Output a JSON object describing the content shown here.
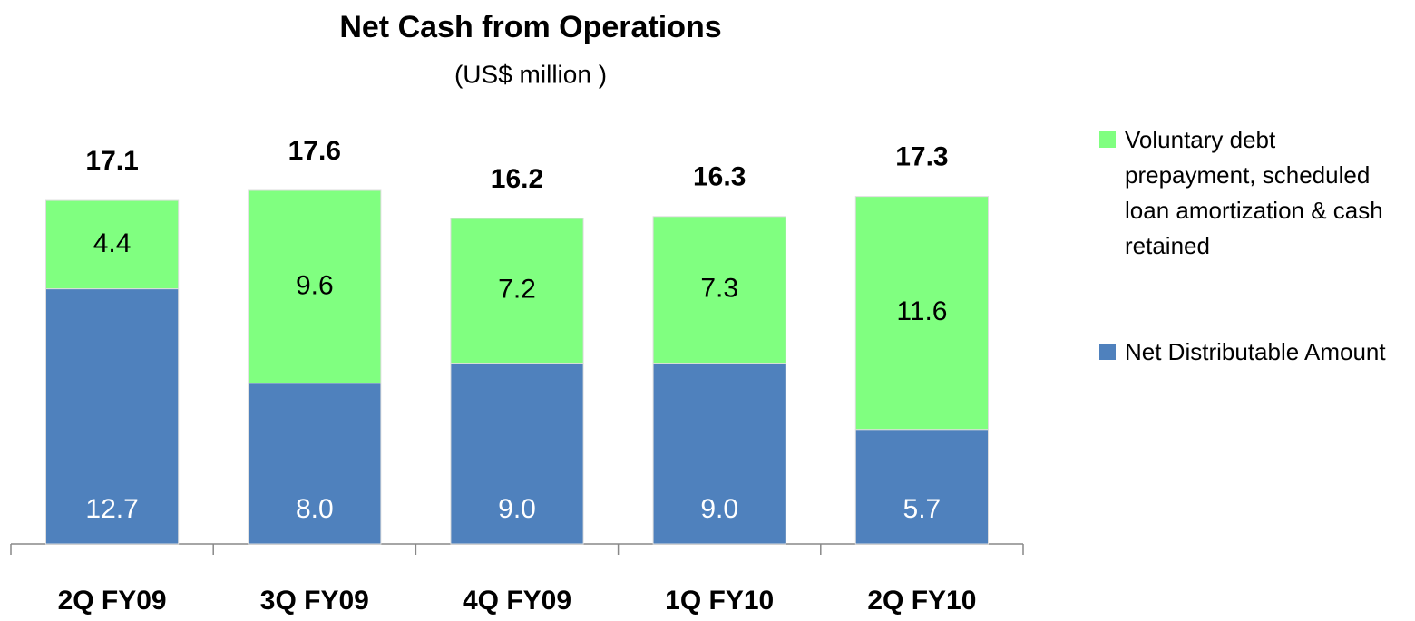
{
  "chart_data": {
    "type": "stacked-bar",
    "title": "Net Cash from Operations",
    "subtitle": "(US$ million )",
    "categories": [
      "2Q FY09",
      "3Q FY09",
      "4Q FY09",
      "1Q FY10",
      "2Q FY10"
    ],
    "series": [
      {
        "name": "Net Distributable Amount",
        "color": "#4f81bd",
        "values": [
          12.7,
          8.0,
          9.0,
          9.0,
          5.7
        ],
        "value_labels": [
          "12.7",
          "8.0",
          "9.0",
          "9.0",
          "5.7"
        ]
      },
      {
        "name": "Voluntary debt prepayment, scheduled loan amortization & cash retained",
        "color": "#80ff80",
        "values": [
          4.4,
          9.6,
          7.2,
          7.3,
          11.6
        ]
      }
    ],
    "totals": [
      17.1,
      17.6,
      16.2,
      16.3,
      17.3
    ],
    "legend": "right"
  }
}
